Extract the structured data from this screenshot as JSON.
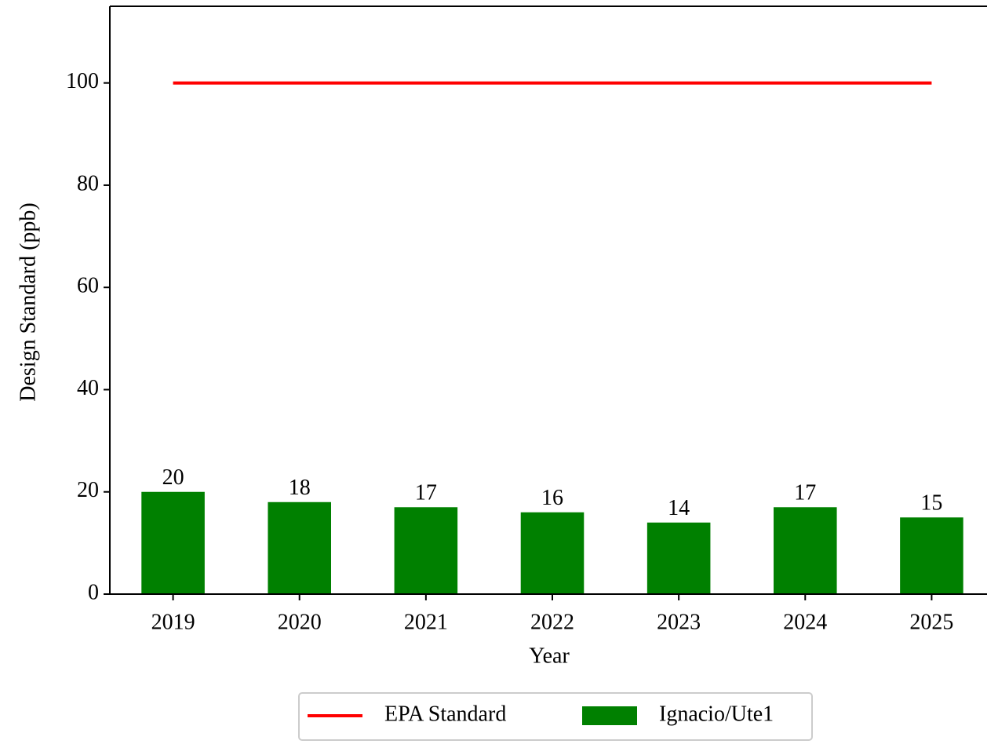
{
  "chart_data": {
    "type": "bar",
    "xlabel": "Year",
    "ylabel": "Design Standard (ppb)",
    "categories": [
      "2019",
      "2020",
      "2021",
      "2022",
      "2023",
      "2024",
      "2025"
    ],
    "series": [
      {
        "name": "EPA Standard",
        "type": "line",
        "color": "#ff0000",
        "values": [
          100,
          100,
          100,
          100,
          100,
          100,
          100
        ]
      },
      {
        "name": "Ignacio/Ute1",
        "type": "bar",
        "color": "#008000",
        "values": [
          20,
          18,
          17,
          16,
          14,
          17,
          15
        ]
      }
    ],
    "ylim": [
      0,
      115
    ],
    "yticks": [
      0,
      20,
      40,
      60,
      80,
      100
    ],
    "legend": "lower center",
    "grid": false
  }
}
